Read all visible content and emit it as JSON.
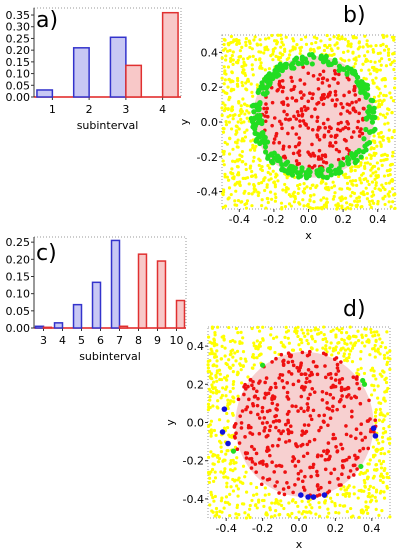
{
  "chart_data": [
    {
      "panel": "a)",
      "type": "bar",
      "xlabel": "subinterval",
      "ylabel": "",
      "ylim": [
        0,
        0.38
      ],
      "yticks": [
        "0.00",
        "0.05",
        "0.10",
        "0.15",
        "0.20",
        "0.25",
        "0.30",
        "0.35"
      ],
      "ytick_values": [
        0,
        0.05,
        0.1,
        0.15,
        0.2,
        0.25,
        0.3,
        0.35
      ],
      "categories": [
        "1",
        "2",
        "3",
        "4"
      ],
      "series": [
        {
          "color": "#3333cc",
          "fill": "#c8c8f4",
          "values": [
            0.03,
            0.21,
            0.255,
            0
          ]
        },
        {
          "color": "#e03030",
          "fill": "#f8c8c8",
          "values": [
            0,
            0,
            0.135,
            0.36
          ]
        }
      ],
      "grid": false
    },
    {
      "panel": "c)",
      "type": "bar",
      "xlabel": "subinterval",
      "ylabel": "",
      "ylim": [
        0,
        0.265
      ],
      "yticks": [
        "0.00",
        "0.05",
        "0.10",
        "0.15",
        "0.20",
        "0.25"
      ],
      "ytick_values": [
        0,
        0.05,
        0.1,
        0.15,
        0.2,
        0.25
      ],
      "categories": [
        "3",
        "4",
        "5",
        "6",
        "7",
        "8",
        "9",
        "10"
      ],
      "series": [
        {
          "color": "#3333cc",
          "fill": "#c8c8f4",
          "values": [
            0.005,
            0.015,
            0.068,
            0.133,
            0.255,
            0,
            0,
            0
          ]
        },
        {
          "color": "#e03030",
          "fill": "#f8c8c8",
          "values": [
            0.002,
            0,
            0,
            0,
            0.005,
            0.215,
            0.195,
            0.08
          ]
        }
      ],
      "grid": false
    },
    {
      "panel": "b)",
      "type": "scatter",
      "xlabel": "x",
      "ylabel": "y",
      "xlim": [
        -0.5,
        0.5
      ],
      "ylim": [
        -0.5,
        0.5
      ],
      "xticks": [
        "-0.4",
        "-0.2",
        "0.0",
        "0.2",
        "0.4"
      ],
      "yticks": [
        "-0.4",
        "-0.2",
        "0.0",
        "0.2",
        "0.4"
      ],
      "tick_values": [
        -0.4,
        -0.2,
        0,
        0.2,
        0.4
      ],
      "circle": {
        "cx": 0.03,
        "cy": 0.03,
        "r": 0.35,
        "fill": "#f7d0d0"
      },
      "point_colors": {
        "outer": "#ffff00",
        "inner": "#ee1111",
        "edge": "#22dd22"
      },
      "note": "yellow points outside the circle, red points inside, green points on the boundary ring"
    },
    {
      "panel": "d)",
      "type": "scatter",
      "xlabel": "x",
      "ylabel": "y",
      "xlim": [
        -0.5,
        0.5
      ],
      "ylim": [
        -0.5,
        0.5
      ],
      "xticks": [
        "-0.4",
        "-0.2",
        "0.0",
        "0.2",
        "0.4"
      ],
      "yticks": [
        "-0.4",
        "-0.2",
        "0.0",
        "0.2",
        "0.4"
      ],
      "tick_values": [
        -0.4,
        -0.2,
        0,
        0.2,
        0.4
      ],
      "circle": {
        "cx": 0.03,
        "cy": -0.01,
        "r": 0.38,
        "fill": "#f7d0d0"
      },
      "point_colors": {
        "outer": "#ffff00",
        "inner": "#ee1111",
        "edge_green": "#22dd22",
        "edge_blue": "#1111dd"
      },
      "blue_points": [
        [
          -0.41,
          0.07
        ],
        [
          -0.42,
          -0.05
        ],
        [
          -0.39,
          -0.11
        ],
        [
          0.05,
          -0.39
        ],
        [
          0.08,
          -0.39
        ],
        [
          0.14,
          -0.38
        ],
        [
          0.01,
          -0.38
        ],
        [
          0.41,
          -0.03
        ],
        [
          0.42,
          -0.07
        ]
      ],
      "green_points": [
        [
          0.36,
          0.2
        ],
        [
          0.35,
          0.22
        ],
        [
          -0.2,
          0.3
        ],
        [
          0.34,
          -0.23
        ],
        [
          -0.36,
          -0.15
        ]
      ]
    }
  ]
}
